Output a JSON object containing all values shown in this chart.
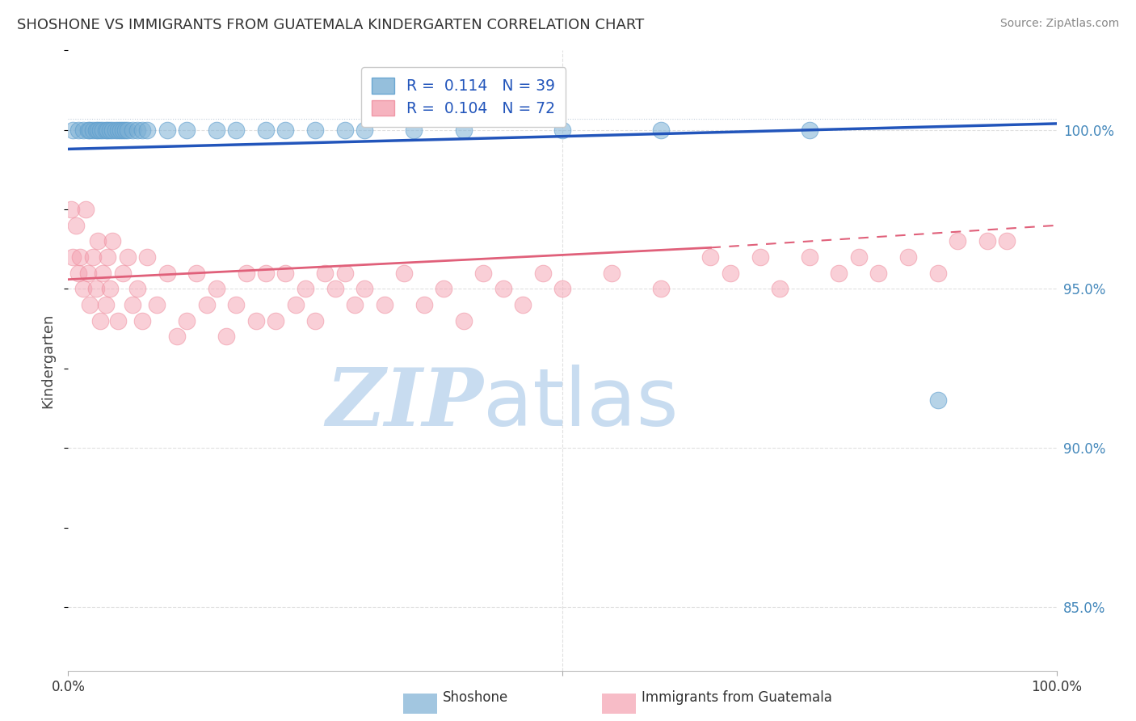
{
  "title": "SHOSHONE VS IMMIGRANTS FROM GUATEMALA KINDERGARTEN CORRELATION CHART",
  "source": "Source: ZipAtlas.com",
  "ylabel": "Kindergarten",
  "y_ticks": [
    85.0,
    90.0,
    95.0,
    100.0
  ],
  "y_tick_labels": [
    "85.0%",
    "90.0%",
    "95.0%",
    "100.0%"
  ],
  "x_range": [
    0.0,
    100.0
  ],
  "y_range": [
    83.0,
    102.5
  ],
  "legend_blue_r": "0.114",
  "legend_blue_n": "39",
  "legend_pink_r": "0.104",
  "legend_pink_n": "72",
  "blue_dot_color": "#7BAFD4",
  "pink_dot_color": "#F4A0B0",
  "blue_line_color": "#2255BB",
  "pink_line_color": "#E0607A",
  "blue_dot_edge": "#5599CC",
  "pink_dot_edge": "#EE8899",
  "watermark_zip": "ZIP",
  "watermark_atlas": "atlas",
  "watermark_color": "#C8DCF0",
  "grid_color": "#CCCCCC",
  "title_color": "#333333",
  "tick_color_right": "#4488BB",
  "source_color": "#888888",
  "shoshone_x": [
    0.5,
    1.0,
    1.5,
    2.0,
    2.2,
    2.5,
    2.8,
    3.0,
    3.2,
    3.5,
    3.8,
    4.0,
    4.2,
    4.5,
    4.8,
    5.0,
    5.3,
    5.5,
    5.8,
    6.0,
    6.5,
    7.0,
    7.5,
    8.0,
    10.0,
    12.0,
    15.0,
    17.0,
    20.0,
    22.0,
    25.0,
    28.0,
    30.0,
    35.0,
    40.0,
    50.0,
    60.0,
    75.0,
    88.0
  ],
  "shoshone_y": [
    100.0,
    100.0,
    100.0,
    100.0,
    100.0,
    100.0,
    100.0,
    100.0,
    100.0,
    100.0,
    100.0,
    100.0,
    100.0,
    100.0,
    100.0,
    100.0,
    100.0,
    100.0,
    100.0,
    100.0,
    100.0,
    100.0,
    100.0,
    100.0,
    100.0,
    100.0,
    100.0,
    100.0,
    100.0,
    100.0,
    100.0,
    100.0,
    100.0,
    100.0,
    100.0,
    100.0,
    100.0,
    100.0,
    91.5
  ],
  "guatemala_x": [
    0.3,
    0.5,
    0.8,
    1.0,
    1.2,
    1.5,
    1.8,
    2.0,
    2.2,
    2.5,
    2.8,
    3.0,
    3.2,
    3.5,
    3.8,
    4.0,
    4.2,
    4.5,
    5.0,
    5.5,
    6.0,
    6.5,
    7.0,
    7.5,
    8.0,
    9.0,
    10.0,
    11.0,
    12.0,
    13.0,
    14.0,
    15.0,
    16.0,
    17.0,
    18.0,
    19.0,
    20.0,
    21.0,
    22.0,
    23.0,
    24.0,
    25.0,
    26.0,
    27.0,
    28.0,
    29.0,
    30.0,
    32.0,
    34.0,
    36.0,
    38.0,
    40.0,
    42.0,
    44.0,
    46.0,
    48.0,
    50.0,
    55.0,
    60.0,
    65.0,
    67.0,
    70.0,
    72.0,
    75.0,
    78.0,
    80.0,
    82.0,
    85.0,
    88.0,
    90.0,
    93.0,
    95.0
  ],
  "guatemala_y": [
    97.5,
    96.0,
    97.0,
    95.5,
    96.0,
    95.0,
    97.5,
    95.5,
    94.5,
    96.0,
    95.0,
    96.5,
    94.0,
    95.5,
    94.5,
    96.0,
    95.0,
    96.5,
    94.0,
    95.5,
    96.0,
    94.5,
    95.0,
    94.0,
    96.0,
    94.5,
    95.5,
    93.5,
    94.0,
    95.5,
    94.5,
    95.0,
    93.5,
    94.5,
    95.5,
    94.0,
    95.5,
    94.0,
    95.5,
    94.5,
    95.0,
    94.0,
    95.5,
    95.0,
    95.5,
    94.5,
    95.0,
    94.5,
    95.5,
    94.5,
    95.0,
    94.0,
    95.5,
    95.0,
    94.5,
    95.5,
    95.0,
    95.5,
    95.0,
    96.0,
    95.5,
    96.0,
    95.0,
    96.0,
    95.5,
    96.0,
    95.5,
    96.0,
    95.5,
    96.5,
    96.5,
    96.5
  ]
}
